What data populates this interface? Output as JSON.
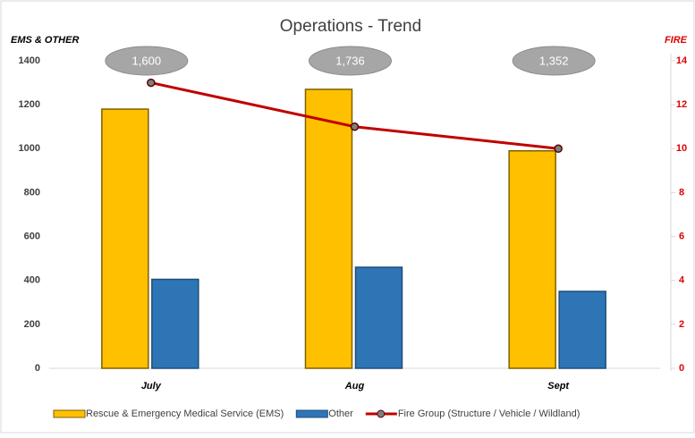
{
  "chart_data": {
    "type": "bar-line",
    "title": "Operations - Trend",
    "y_label": "EMS & OTHER",
    "y2_label": "FIRE",
    "categories": [
      "July",
      "Aug",
      "Sept"
    ],
    "annotations": [
      "1,600",
      "1,736",
      "1,352"
    ],
    "series": [
      {
        "name": "Rescue & Emergency Medical Service (EMS)",
        "type": "bar",
        "color": "#ffc000",
        "values": [
          1180,
          1270,
          990
        ]
      },
      {
        "name": "Other",
        "type": "bar",
        "color": "#2e75b6",
        "values": [
          405,
          460,
          350
        ]
      },
      {
        "name": "Fire Group (Structure / Vehicle / Wildland)",
        "type": "line",
        "color": "#c00000",
        "axis": "y2",
        "values": [
          13,
          11,
          10
        ]
      }
    ],
    "ylim": [
      0,
      1400
    ],
    "yticks": [
      0,
      200,
      400,
      600,
      800,
      1000,
      1200,
      1400
    ],
    "y2lim": [
      0,
      14
    ],
    "y2ticks": [
      0,
      2,
      4,
      6,
      8,
      10,
      12,
      14
    ],
    "grid": false
  }
}
